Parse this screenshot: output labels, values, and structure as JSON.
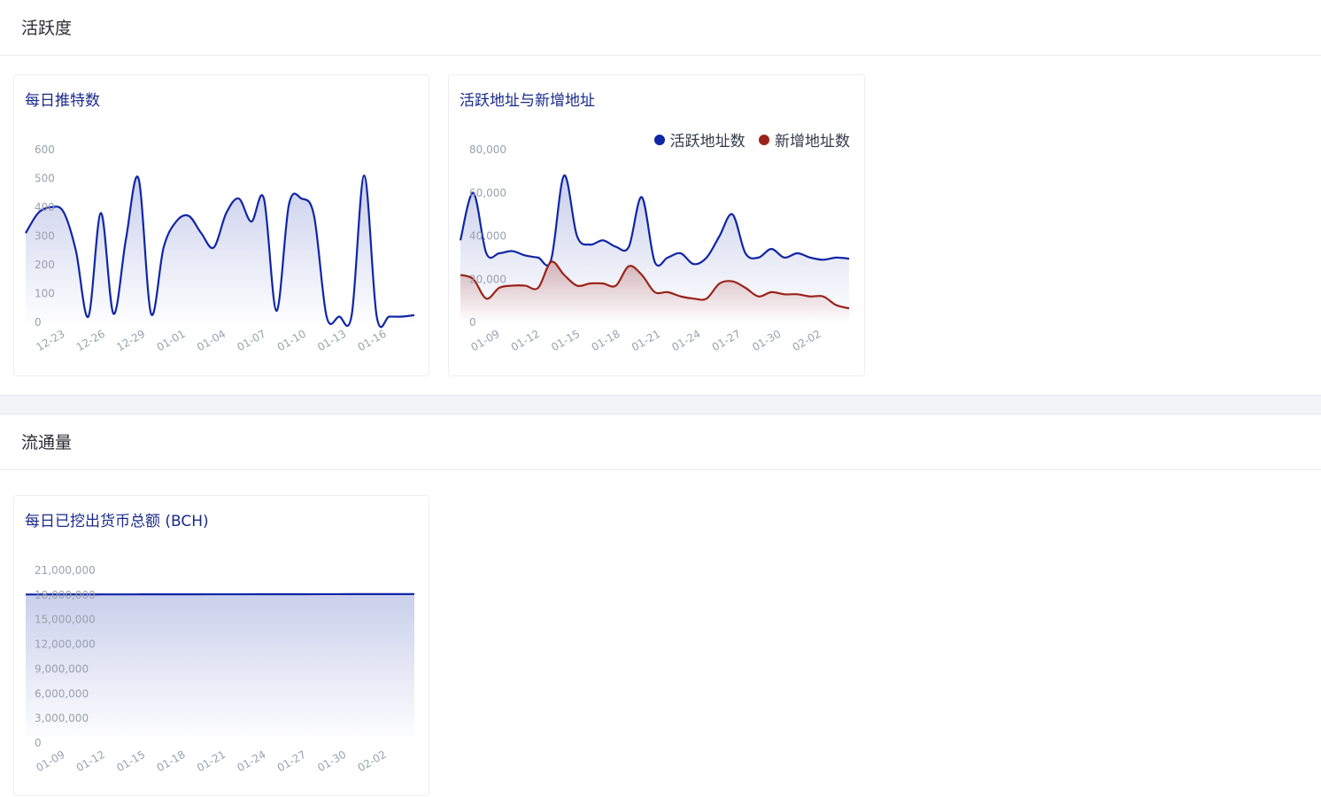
{
  "sections": {
    "activity": {
      "title": "活跃度"
    },
    "circulation": {
      "title": "流通量"
    }
  },
  "colors": {
    "blue": "#0f26a6",
    "red": "#9a2218",
    "tick": "#9aa0ae"
  },
  "chart_data": [
    {
      "id": "daily-tweets",
      "type": "area",
      "title": "每日推特数",
      "xlabel": "",
      "ylabel": "",
      "ylim": [
        0,
        600
      ],
      "yticks": [
        0,
        100,
        200,
        300,
        400,
        500,
        600
      ],
      "xticks": [
        "12-23",
        "12-26",
        "12-29",
        "01-01",
        "01-04",
        "01-07",
        "01-10",
        "01-13",
        "01-16"
      ],
      "series": [
        {
          "values": [
            310,
            380,
            400,
            385,
            250,
            20,
            380,
            30,
            290,
            500,
            30,
            260,
            350,
            370,
            310,
            260,
            380,
            430,
            350,
            430,
            40,
            410,
            430,
            370,
            20,
            20,
            25,
            510,
            20,
            20,
            20,
            25
          ]
        }
      ]
    },
    {
      "id": "active-new-addresses",
      "type": "area",
      "title": "活跃地址与新增地址",
      "xlabel": "",
      "ylabel": "",
      "ylim": [
        0,
        80000
      ],
      "yticks": [
        0,
        20000,
        40000,
        60000,
        80000
      ],
      "legend_position": "top-right",
      "xticks": [
        "01-09",
        "01-12",
        "01-15",
        "01-18",
        "01-21",
        "01-24",
        "01-27",
        "01-30",
        "02-02"
      ],
      "series": [
        {
          "name": "活跃地址数",
          "values": [
            38000,
            60000,
            32000,
            32000,
            33000,
            31000,
            30000,
            29000,
            68000,
            40000,
            36000,
            38000,
            35000,
            35000,
            58000,
            28000,
            30000,
            32000,
            27000,
            30000,
            40000,
            50000,
            32000,
            30000,
            34000,
            30000,
            32000,
            30000,
            29000,
            30000,
            29500
          ]
        },
        {
          "name": "新增地址数",
          "values": [
            22000,
            20000,
            11000,
            16000,
            17000,
            17000,
            16000,
            28000,
            22000,
            17000,
            18000,
            18000,
            17000,
            26000,
            22000,
            14000,
            14000,
            12000,
            11000,
            11000,
            18000,
            19000,
            16000,
            12000,
            14000,
            13000,
            13000,
            12000,
            12000,
            8000,
            6500
          ]
        }
      ]
    },
    {
      "id": "daily-mined-total",
      "type": "area",
      "title": "每日已挖出货币总额 (BCH)",
      "xlabel": "",
      "ylabel": "",
      "ylim": [
        0,
        21000000
      ],
      "yticks": [
        0,
        3000000,
        6000000,
        9000000,
        12000000,
        15000000,
        18000000,
        21000000
      ],
      "xticks": [
        "01-09",
        "01-12",
        "01-15",
        "01-18",
        "01-21",
        "01-24",
        "01-27",
        "01-30",
        "02-02"
      ],
      "series": [
        {
          "values": [
            18060000,
            18062000,
            18064000,
            18066000,
            18068000,
            18070000,
            18072000,
            18074000,
            18076000,
            18078000,
            18080000,
            18082000,
            18084000,
            18086000,
            18088000,
            18090000,
            18092000,
            18094000,
            18096000,
            18098000,
            18100000,
            18102000,
            18104000,
            18106000,
            18108000,
            18110000
          ]
        }
      ]
    }
  ]
}
